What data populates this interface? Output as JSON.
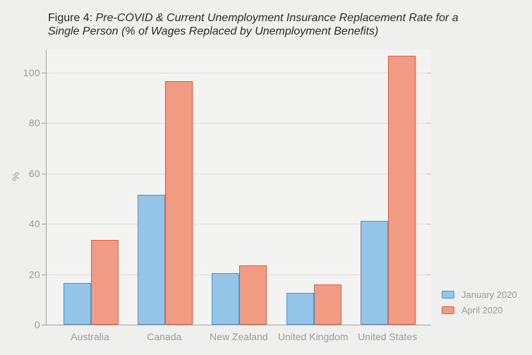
{
  "figure": {
    "title_prefix": "Figure 4: ",
    "title_italic_line1": "Pre-COVID & Current Unemployment Insurance Replacement Rate for a",
    "title_italic_line2": "Single Person (% of Wages Replaced by Unemployment Benefits)"
  },
  "chart_data": {
    "type": "bar",
    "title": "Figure 4: Pre-COVID & Current Unemployment Insurance Replacement Rate for a Single Person (% of Wages Replaced by Unemployment Benefits)",
    "categories": [
      "Australia",
      "Canada",
      "New Zealand",
      "United Kingdom",
      "United States"
    ],
    "series": [
      {
        "name": "January 2020",
        "values": [
          16.5,
          51.5,
          20.5,
          12.5,
          41
        ],
        "fill": "#92c5e8",
        "stroke": "#4e93c6"
      },
      {
        "name": "April 2020",
        "values": [
          33.5,
          96.5,
          23.5,
          16,
          106.5
        ],
        "fill": "#f29b83",
        "stroke": "#e15d43"
      }
    ],
    "xlabel": "",
    "ylabel": "%",
    "yticks": [
      0,
      20,
      40,
      60,
      80,
      100
    ],
    "ylim": [
      0,
      109
    ],
    "grid": true,
    "legend_position": "bottom-right"
  }
}
